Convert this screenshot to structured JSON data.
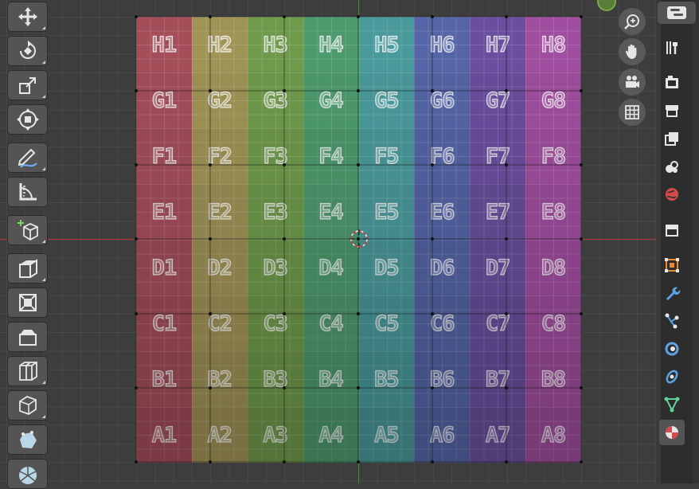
{
  "uv_grid": {
    "rows": [
      [
        "H1",
        "H2",
        "H3",
        "H4",
        "H5",
        "H6",
        "H7",
        "H8"
      ],
      [
        "G1",
        "G2",
        "G3",
        "G4",
        "G5",
        "G6",
        "G7",
        "G8"
      ],
      [
        "F1",
        "F2",
        "F3",
        "F4",
        "F5",
        "F6",
        "F7",
        "F8"
      ],
      [
        "E1",
        "E2",
        "E3",
        "E4",
        "E5",
        "E6",
        "E7",
        "E8"
      ],
      [
        "D1",
        "D2",
        "D3",
        "D4",
        "D5",
        "D6",
        "D7",
        "D8"
      ],
      [
        "C1",
        "C2",
        "C3",
        "C4",
        "C5",
        "C6",
        "C7",
        "C8"
      ],
      [
        "B1",
        "B2",
        "B3",
        "B4",
        "B5",
        "B6",
        "B7",
        "B8"
      ],
      [
        "A1",
        "A2",
        "A3",
        "A4",
        "A5",
        "A6",
        "A7",
        "A8"
      ]
    ],
    "column_colors": [
      "#a44e5a",
      "#a09356",
      "#6f9a4b",
      "#4d9a6d",
      "#4a9a9c",
      "#5565a6",
      "#6a4f9e",
      "#a04e9f"
    ]
  },
  "toolbar": {
    "tools": [
      "move-tool",
      "rotate-tool",
      "scale-tool",
      "transform-tool",
      "annotate-tool",
      "measure-tool",
      "add-cube-tool",
      "extrude-region-tool",
      "inset-faces-tool",
      "bevel-tool",
      "loop-cut-tool",
      "knife-tool",
      "poly-build-tool",
      "spin-tool"
    ]
  },
  "navigation": [
    "zoom",
    "pan",
    "camera",
    "orthographic-toggle"
  ],
  "properties_tabs": [
    "tool",
    "render",
    "output",
    "view-layer",
    "scene",
    "world",
    "collection",
    "object",
    "modifiers",
    "particles",
    "physics",
    "object-constraints",
    "object-data",
    "material"
  ],
  "colors": {
    "background": "#3d3d3d",
    "x_axis": "#b53a3a",
    "y_axis": "#5e8b4a",
    "panel": "#2d2d2d",
    "active_tab": "#545454"
  }
}
